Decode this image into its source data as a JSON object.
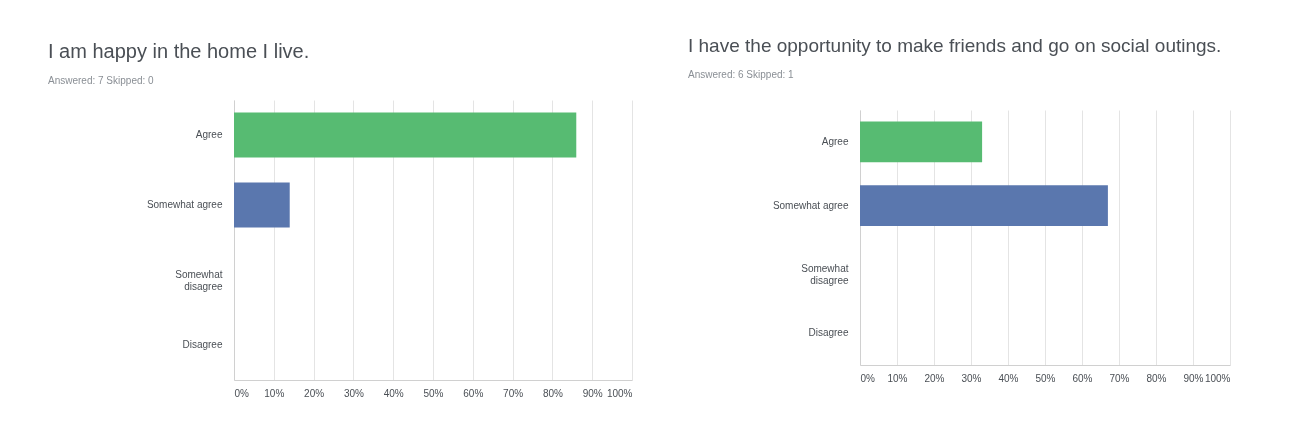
{
  "chart_data": [
    {
      "type": "bar",
      "orientation": "horizontal",
      "title": "I am happy in the home I live.",
      "subtitle": "Answered: 7    Skipped: 0",
      "categories": [
        "Agree",
        "Somewhat agree",
        "Somewhat disagree",
        "Disagree"
      ],
      "values": [
        86,
        14,
        0,
        0
      ],
      "colors": [
        "#57bb72",
        "#5a77ae",
        "#5a77ae",
        "#5a77ae"
      ],
      "xlim": [
        0,
        100
      ],
      "xticks": [
        {
          "value": 0,
          "label": "0%"
        },
        {
          "value": 10,
          "label": "10%"
        },
        {
          "value": 20,
          "label": "20%"
        },
        {
          "value": 30,
          "label": "30%"
        },
        {
          "value": 40,
          "label": "40%"
        },
        {
          "value": 50,
          "label": "50%"
        },
        {
          "value": 60,
          "label": "60%"
        },
        {
          "value": 70,
          "label": "70%"
        },
        {
          "value": 80,
          "label": "80%"
        },
        {
          "value": 90,
          "label": "90%"
        },
        {
          "value": 100,
          "label": "100%"
        }
      ],
      "grid": "x"
    },
    {
      "type": "bar",
      "orientation": "horizontal",
      "title": "I have the opportunity to make friends and go on social outings.",
      "subtitle": "Answered: 6    Skipped: 1",
      "categories": [
        "Agree",
        "Somewhat agree",
        "Somewhat disagree",
        "Disagree"
      ],
      "values": [
        33,
        67,
        0,
        0
      ],
      "colors": [
        "#57bb72",
        "#5a77ae",
        "#5a77ae",
        "#5a77ae"
      ],
      "xlim": [
        0,
        100
      ],
      "xticks": [
        {
          "value": 0,
          "label": "0%"
        },
        {
          "value": 10,
          "label": "10%"
        },
        {
          "value": 20,
          "label": "20%"
        },
        {
          "value": 30,
          "label": "30%"
        },
        {
          "value": 40,
          "label": "40%"
        },
        {
          "value": 50,
          "label": "50%"
        },
        {
          "value": 60,
          "label": "60%"
        },
        {
          "value": 70,
          "label": "70%"
        },
        {
          "value": 80,
          "label": "80%"
        },
        {
          "value": 90,
          "label": "90%"
        },
        {
          "value": 100,
          "label": "100%"
        }
      ],
      "grid": "x"
    }
  ]
}
